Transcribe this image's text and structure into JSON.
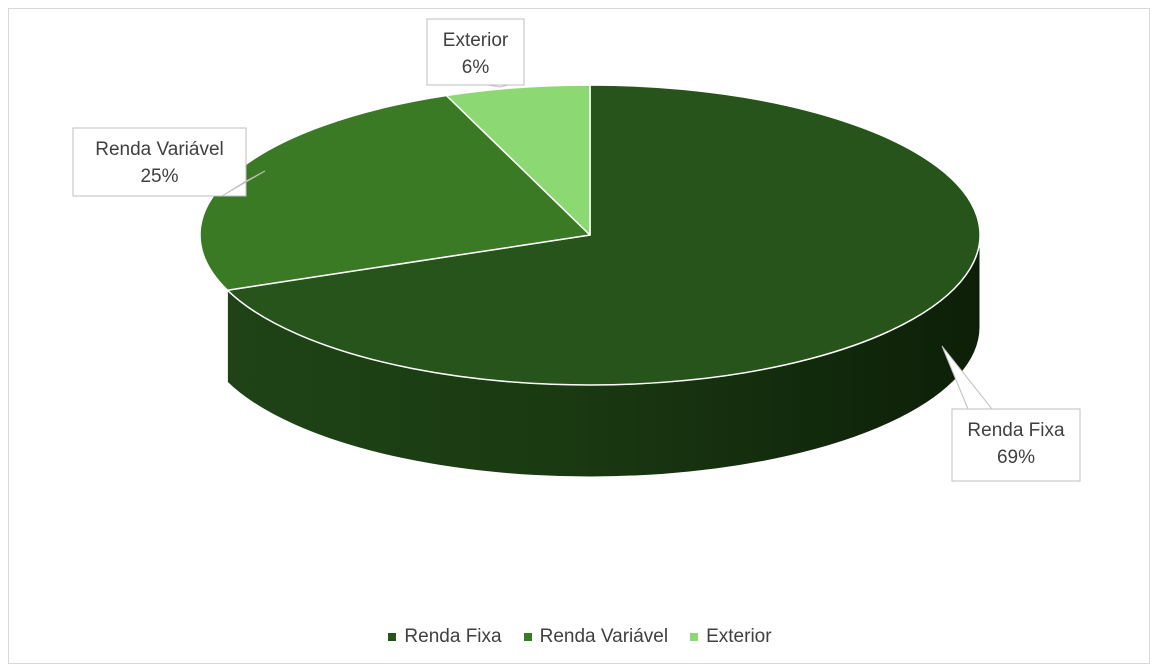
{
  "chart_data": {
    "type": "pie",
    "style": "3d",
    "title": "",
    "slices": [
      {
        "label": "Renda Fixa",
        "value": 69,
        "value_label": "69%",
        "color": "#27541a"
      },
      {
        "label": "Renda Variável",
        "value": 25,
        "value_label": "25%",
        "color": "#3a7a24"
      },
      {
        "label": "Exterior",
        "value": 6,
        "value_label": "6%",
        "color": "#8cd873"
      }
    ],
    "legend": {
      "position": "bottom",
      "items": [
        "Renda Fixa",
        "Renda Variável",
        "Exterior"
      ]
    }
  }
}
